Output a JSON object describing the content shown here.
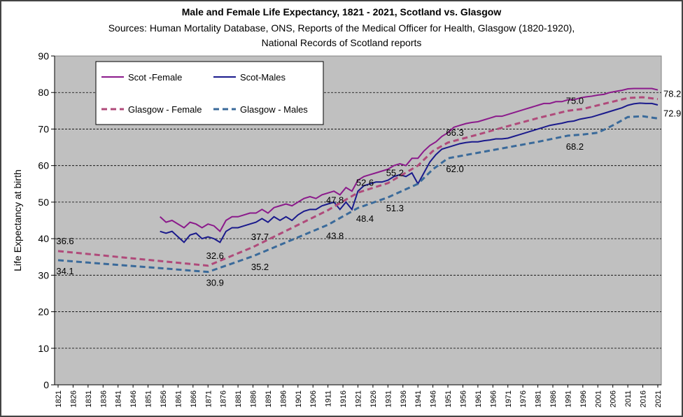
{
  "chart_data": {
    "type": "line",
    "title": "Male and Female Life Expectancy, 1821 - 2021, Scotland vs. Glasgow",
    "subtitle": [
      "Sources: Human Mortality Database, ONS, Reports of the Medical Officer for Health, Glasgow (1820-1920),",
      "National Records of Scotland reports"
    ],
    "ylabel": "Life Expectancy at birth",
    "xlim": [
      1821,
      2021
    ],
    "xticks": [
      1821,
      1826,
      1831,
      1836,
      1841,
      1846,
      1851,
      1856,
      1861,
      1866,
      1871,
      1876,
      1881,
      1886,
      1891,
      1896,
      1901,
      1906,
      1911,
      1916,
      1921,
      1926,
      1931,
      1936,
      1941,
      1946,
      1951,
      1956,
      1961,
      1966,
      1971,
      1976,
      1981,
      1986,
      1991,
      1996,
      2001,
      2006,
      2011,
      2016,
      2021
    ],
    "ylim": [
      0,
      90
    ],
    "yticks": [
      0,
      10,
      20,
      30,
      40,
      50,
      60,
      70,
      80,
      90
    ],
    "grid": true,
    "legend": "upper left",
    "series": [
      {
        "name": "Scot -Female",
        "color": "#8b1a8b",
        "dashed": false,
        "x": [
          1855,
          1857,
          1859,
          1861,
          1863,
          1865,
          1867,
          1869,
          1871,
          1873,
          1875,
          1877,
          1879,
          1881,
          1883,
          1885,
          1887,
          1889,
          1891,
          1893,
          1895,
          1897,
          1899,
          1901,
          1903,
          1905,
          1907,
          1909,
          1911,
          1913,
          1915,
          1917,
          1919,
          1921,
          1923,
          1925,
          1927,
          1929,
          1931,
          1933,
          1935,
          1937,
          1939,
          1941,
          1943,
          1945,
          1947,
          1949,
          1951,
          1953,
          1955,
          1957,
          1959,
          1961,
          1963,
          1965,
          1967,
          1969,
          1971,
          1973,
          1975,
          1977,
          1979,
          1981,
          1983,
          1985,
          1987,
          1989,
          1991,
          1993,
          1995,
          1997,
          1999,
          2001,
          2003,
          2005,
          2007,
          2009,
          2011,
          2013,
          2015,
          2017,
          2019,
          2021
        ],
        "values": [
          46,
          44.5,
          45,
          44,
          43,
          44.5,
          44,
          43,
          44,
          43.5,
          42,
          45,
          46,
          46,
          46.5,
          47,
          47,
          48,
          47,
          48.5,
          49,
          49.5,
          49,
          50,
          51,
          51.5,
          51,
          52,
          52.5,
          53,
          52,
          54,
          53,
          56,
          57,
          57.5,
          58,
          58.5,
          59,
          60,
          60.5,
          60,
          62,
          62,
          64,
          65.5,
          66.5,
          68,
          69,
          70.5,
          71,
          71.5,
          71.8,
          72,
          72.5,
          73,
          73.5,
          73.5,
          74,
          74.5,
          75,
          75.5,
          76,
          76.5,
          77,
          77,
          77.5,
          77.5,
          78,
          78,
          78.5,
          78.8,
          79,
          79.3,
          79.5,
          80,
          80.3,
          80.6,
          81,
          81.1,
          81.1,
          81.1,
          81.1,
          80.7
        ]
      },
      {
        "name": "Scot-Males",
        "color": "#1a1a8c",
        "dashed": false,
        "x": [
          1855,
          1857,
          1859,
          1861,
          1863,
          1865,
          1867,
          1869,
          1871,
          1873,
          1875,
          1877,
          1879,
          1881,
          1883,
          1885,
          1887,
          1889,
          1891,
          1893,
          1895,
          1897,
          1899,
          1901,
          1903,
          1905,
          1907,
          1909,
          1911,
          1913,
          1915,
          1917,
          1919,
          1921,
          1923,
          1925,
          1927,
          1929,
          1931,
          1933,
          1935,
          1937,
          1939,
          1941,
          1943,
          1945,
          1947,
          1949,
          1951,
          1953,
          1955,
          1957,
          1959,
          1961,
          1963,
          1965,
          1967,
          1969,
          1971,
          1973,
          1975,
          1977,
          1979,
          1981,
          1983,
          1985,
          1987,
          1989,
          1991,
          1993,
          1995,
          1997,
          1999,
          2001,
          2003,
          2005,
          2007,
          2009,
          2011,
          2013,
          2015,
          2017,
          2019,
          2021
        ],
        "values": [
          42,
          41.5,
          42,
          40.5,
          39,
          41,
          41.5,
          40,
          40.5,
          40,
          39,
          42,
          43,
          43,
          43.5,
          44,
          44.5,
          45.5,
          44.5,
          46,
          45,
          46,
          45,
          46.5,
          47.5,
          48,
          48,
          49,
          49.5,
          50,
          48,
          50,
          48,
          53,
          54.5,
          55,
          55.5,
          55.5,
          56,
          57,
          57.5,
          57,
          58,
          55,
          58,
          61,
          63,
          64.5,
          65,
          65.5,
          66,
          66.3,
          66.5,
          66.5,
          66.8,
          67,
          67.3,
          67.3,
          67.5,
          68,
          68.5,
          69,
          69.5,
          70,
          70.5,
          71,
          71.3,
          71.6,
          72,
          72.2,
          72.7,
          73,
          73.3,
          73.8,
          74.3,
          74.8,
          75.3,
          75.8,
          76.5,
          76.9,
          77.1,
          77,
          77,
          76.6
        ]
      },
      {
        "name": "Glasgow - Female",
        "color": "#b04a7a",
        "dashed": true,
        "x": [
          1821,
          1871,
          1886,
          1911,
          1921,
          1931,
          1941,
          1946,
          1951,
          1961,
          1971,
          1981,
          1991,
          1996,
          2001,
          2006,
          2011,
          2016,
          2021
        ],
        "values": [
          36.6,
          32.6,
          37.7,
          47.8,
          52.6,
          55.2,
          60,
          64,
          66.3,
          68.5,
          70.8,
          73,
          75,
          75.5,
          76.5,
          77.5,
          78.5,
          78.7,
          78.2
        ],
        "value_labels": [
          "36.6",
          "32.6",
          "37.7",
          "47.8",
          "52.6",
          "55.2",
          null,
          null,
          "66.3",
          null,
          null,
          null,
          "75.0",
          null,
          null,
          null,
          null,
          null,
          "78.2"
        ]
      },
      {
        "name": "Glasgow - Males",
        "color": "#3a6a9a",
        "dashed": true,
        "x": [
          1821,
          1871,
          1886,
          1911,
          1921,
          1931,
          1941,
          1946,
          1951,
          1961,
          1971,
          1981,
          1991,
          1996,
          2001,
          2006,
          2011,
          2016,
          2021
        ],
        "values": [
          34.1,
          30.9,
          35.2,
          43.8,
          48.4,
          51.3,
          55,
          59,
          62,
          63.5,
          65,
          66.5,
          68.2,
          68.5,
          69,
          71,
          73.3,
          73.5,
          72.9
        ],
        "value_labels": [
          "34.1",
          "30.9",
          "35.2",
          "43.8",
          "48.4",
          "51.3",
          null,
          null,
          "62.0",
          null,
          null,
          null,
          "68.2",
          null,
          null,
          null,
          null,
          null,
          "72.9"
        ]
      }
    ]
  }
}
